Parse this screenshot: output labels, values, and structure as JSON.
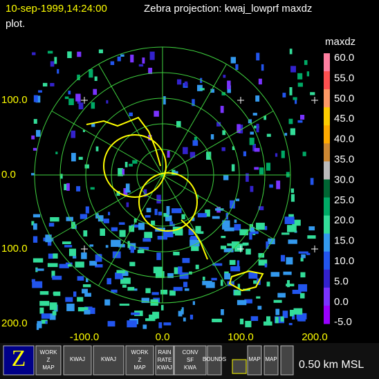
{
  "header": {
    "timestamp": "10-sep-1999,14:24:00",
    "title": "Zebra projection: kwaj_lowprf maxdz",
    "title_cont": "plot."
  },
  "plot": {
    "y_labels": [
      "100.0",
      "0.0",
      "100.0",
      "200.0"
    ],
    "x_labels": [
      "-100.0",
      "0.0",
      "100.0",
      "200.0"
    ]
  },
  "colorbar": {
    "title": "maxdz",
    "labels": [
      "60.0",
      "55.0",
      "50.0",
      "45.0",
      "40.0",
      "35.0",
      "30.0",
      "25.0",
      "20.0",
      "15.0",
      "10.0",
      "5.0",
      "0.0",
      "-5.0"
    ]
  },
  "toolbar": {
    "icons": [
      {
        "lines": [
          "Z"
        ]
      },
      {
        "lines": [
          "WORK",
          "Z",
          "MAP"
        ]
      },
      {
        "lines": [
          "KWAJ"
        ]
      },
      {
        "lines": [
          "KWAJ"
        ]
      },
      {
        "lines": [
          "WORK",
          "Z",
          "MAP"
        ]
      },
      {
        "lines": [
          "RAIN",
          "RATE",
          "KWAJ"
        ]
      },
      {
        "lines": [
          "CONV",
          "SF",
          "KWA"
        ]
      },
      {
        "lines": [
          "BOUNDS"
        ]
      },
      {
        "lines": [
          "MAP"
        ]
      },
      {
        "lines": [
          "MAP"
        ]
      }
    ],
    "status": "0.50 km MSL"
  }
}
